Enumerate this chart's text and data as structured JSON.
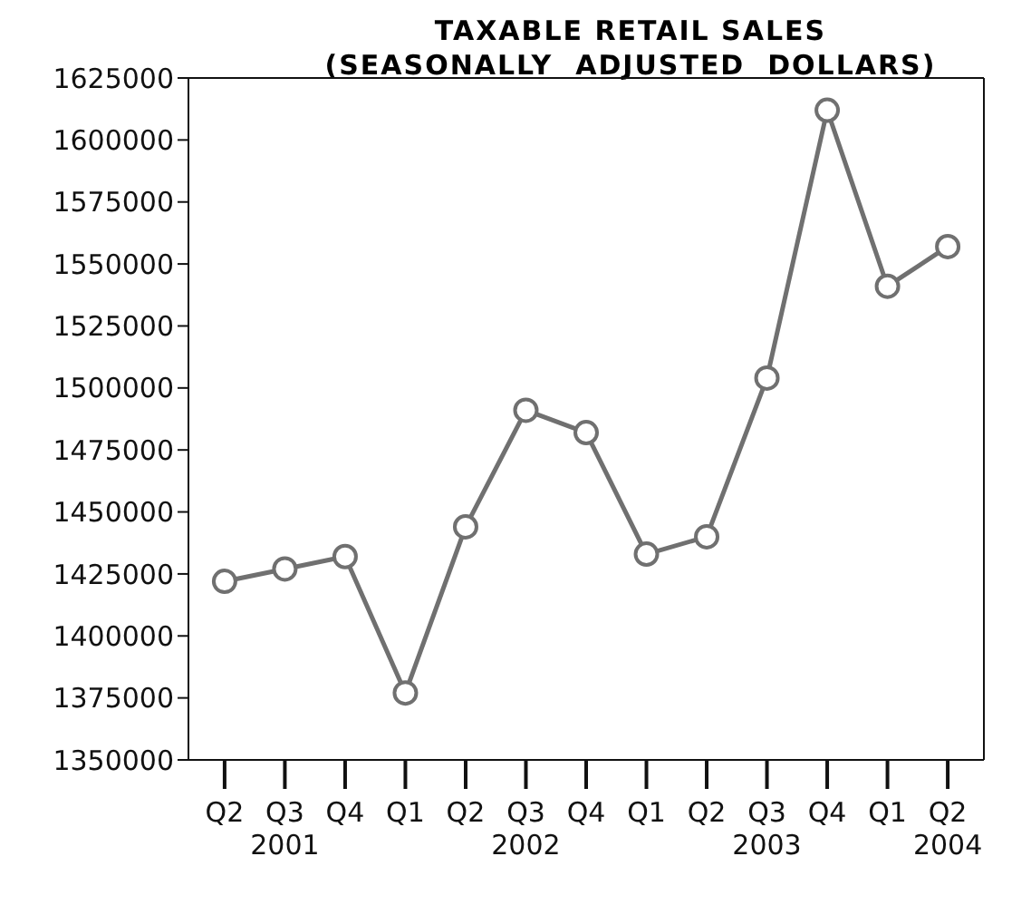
{
  "chart_data": {
    "type": "line",
    "title": "TAXABLE RETAIL SALES\n(SEASONALLY  ADJUSTED  DOLLARS)",
    "categories": [
      "Q2",
      "Q3\n2001",
      "Q4",
      "Q1",
      "Q2",
      "Q3\n2002",
      "Q4",
      "Q1",
      "Q2",
      "Q3\n2003",
      "Q4",
      "Q1",
      "Q2\n2004"
    ],
    "series": [
      {
        "color": "#707070",
        "values": [
          1422000,
          1427000,
          1432000,
          1377000,
          1444000,
          1491000,
          1482000,
          1433000,
          1440000,
          1504000,
          1612000,
          1541000,
          1557000
        ]
      }
    ],
    "ylim": [
      1350000,
      1625000
    ],
    "yticks": [
      1350000,
      1375000,
      1400000,
      1425000,
      1450000,
      1475000,
      1500000,
      1525000,
      1550000,
      1575000,
      1600000,
      1625000
    ],
    "grid": false,
    "legend": false,
    "marker": "circle",
    "line_style": "solid"
  }
}
